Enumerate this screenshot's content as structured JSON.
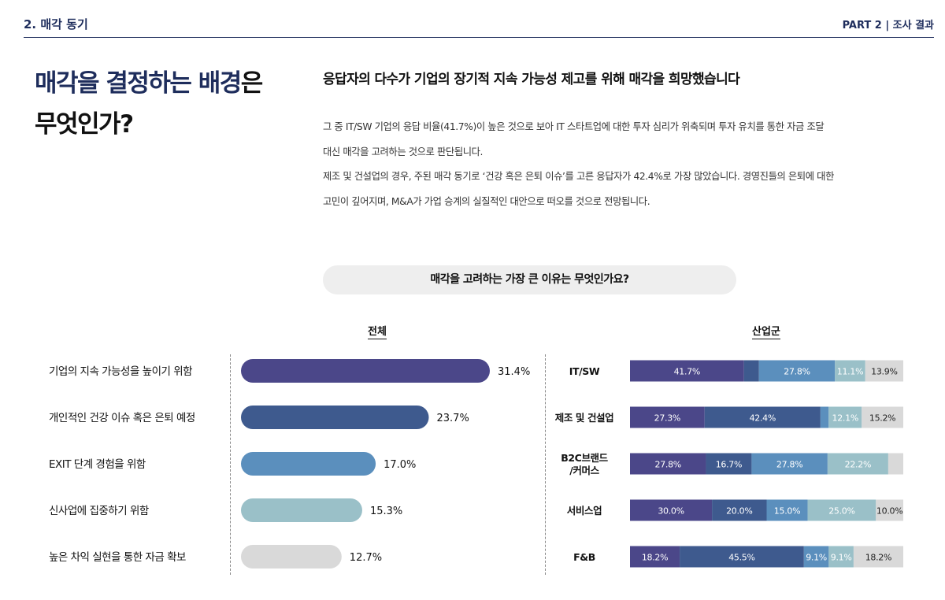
{
  "header": {
    "section": "2. 매각 동기",
    "part": "PART 2 | 조사 결과"
  },
  "title": {
    "line1_accent": "매각을 결정하는 배경",
    "line1_rest": "은",
    "line2": "무엇인가?"
  },
  "headline": "응답자의 다수가 기업의 장기적 지속 가능성 제고를 위해 매각을 희망했습니다",
  "body": [
    "그 중 IT/SW 기업의 응답 비율(41.7%)이 높은 것으로 보아 IT 스타트업에 대한 투자 심리가 위축되며 투자 유치를 통한 자금 조달",
    "대신 매각을 고려하는 것으로 판단됩니다.",
    "제조 및 건설업의 경우, 주된 매각 동기로 ‘건강 혹은 은퇴 이슈’를 고른 응답자가 42.4%로 가장 많았습니다. 경영진들의 은퇴에 대한",
    "고민이 깊어지며, M&A가 가업 승계의 실질적인 대안으로 떠오를 것으로 전망됩니다."
  ],
  "question": "매각을 고려하는 가장 큰 이유는 무엇인가요?",
  "chart_data": [
    {
      "type": "bar",
      "orientation": "horizontal",
      "title": "전체",
      "categories": [
        "기업의 지속 가능성을 높이기 위함",
        "개인적인 건강 이슈 혹은 은퇴 예정",
        "EXIT 단계 경험을 위함",
        "신사업에 집중하기 위함",
        "높은 차익 실현을 통한 자금 확보"
      ],
      "values": [
        31.4,
        23.7,
        17.0,
        15.3,
        12.7
      ],
      "labels": [
        "31.4%",
        "23.7%",
        "17.0%",
        "15.3%",
        "12.7%"
      ],
      "colors": [
        "#4b4789",
        "#3e5a8e",
        "#5b8fbd",
        "#9ac0c8",
        "#d9d9d9"
      ],
      "xlim": [
        0,
        31.4
      ]
    },
    {
      "type": "bar",
      "orientation": "horizontal",
      "stacked": true,
      "normalized_percent": true,
      "title": "산업군",
      "categories": [
        "IT/SW",
        "제조 및 건설업",
        "B2C브랜드\n/커머스",
        "서비스업",
        "F&B"
      ],
      "category_lines": [
        [
          "IT/SW"
        ],
        [
          "제조 및 건설업"
        ],
        [
          "B2C브랜드",
          "/커머스"
        ],
        [
          "서비스업"
        ],
        [
          "F&B"
        ]
      ],
      "series_colors": [
        "#4b4789",
        "#3e5a8e",
        "#5b8fbd",
        "#9ac0c8",
        "#d9d9d9"
      ],
      "rows": [
        {
          "values": [
            41.7,
            5.5,
            27.8,
            11.1,
            13.9
          ],
          "labels": [
            "41.7%",
            "",
            "27.8%",
            "11.1%",
            "13.9%"
          ]
        },
        {
          "values": [
            27.3,
            42.4,
            3.0,
            12.1,
            15.2
          ],
          "labels": [
            "27.3%",
            "42.4%",
            "",
            "12.1%",
            "15.2%"
          ]
        },
        {
          "values": [
            27.8,
            16.7,
            27.8,
            22.2,
            5.5
          ],
          "labels": [
            "27.8%",
            "16.7%",
            "27.8%",
            "22.2%",
            ""
          ]
        },
        {
          "values": [
            30.0,
            20.0,
            15.0,
            25.0,
            10.0
          ],
          "labels": [
            "30.0%",
            "20.0%",
            "15.0%",
            "25.0%",
            "10.0%"
          ]
        },
        {
          "values": [
            18.2,
            45.5,
            9.1,
            9.1,
            18.2
          ],
          "labels": [
            "18.2%",
            "45.5%",
            "9.1%",
            "9.1%",
            "18.2%"
          ]
        }
      ]
    }
  ]
}
